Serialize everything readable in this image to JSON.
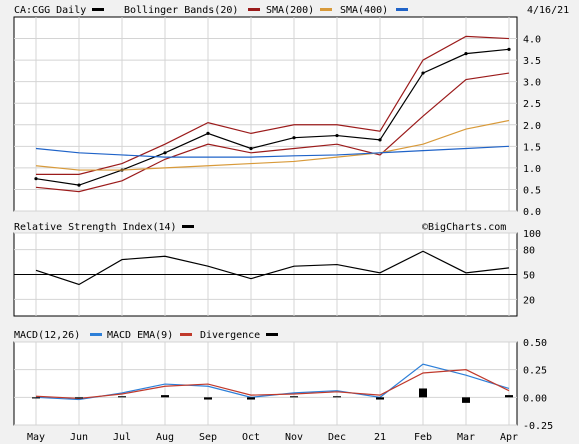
{
  "colors": {
    "background": "#f1f1f1",
    "panel_bg": "#ffffff",
    "grid": "#d4d4d4",
    "price": "#000000",
    "bollinger": "#9b1b1b",
    "sma200": "#d89a3a",
    "sma400": "#1f63c8",
    "rsi": "#000000",
    "macd": "#2d7fd8",
    "macd_ema": "#c0392b",
    "divergence": "#000000"
  },
  "header": {
    "symbol_label": "CA:CGG Daily",
    "bb_label": "Bollinger Bands(20)",
    "sma200_label": "SMA(200)",
    "sma400_label": "SMA(400)",
    "date": "4/16/21"
  },
  "rsi_header": {
    "label": "Relative Strength Index(14)",
    "watermark": "©BigCharts.com"
  },
  "macd_header": {
    "macd_label": "MACD(12,26)",
    "ema_label": "MACD EMA(9)",
    "div_label": "Divergence"
  },
  "chart_data": [
    {
      "type": "line",
      "title": "CA:CGG Daily",
      "x": [
        "May",
        "Jun",
        "Jul",
        "Aug",
        "Sep",
        "Oct",
        "Nov",
        "Dec",
        "21",
        "Feb",
        "Mar",
        "Apr"
      ],
      "ylim": [
        0.0,
        4.5
      ],
      "yticks": [
        "0.0",
        "0.5",
        "1.0",
        "1.5",
        "2.0",
        "2.5",
        "3.0",
        "3.5",
        "4.0"
      ],
      "grid": true,
      "legend": "top",
      "series": [
        {
          "name": "CA:CGG Daily",
          "values": [
            0.75,
            0.6,
            0.95,
            1.35,
            1.8,
            1.45,
            1.7,
            1.75,
            1.65,
            3.2,
            3.65,
            3.75
          ]
        },
        {
          "name": "Bollinger Bands(20) upper",
          "values": [
            0.85,
            0.85,
            1.1,
            1.55,
            2.05,
            1.8,
            2.0,
            2.0,
            1.85,
            3.5,
            4.05,
            4.0
          ]
        },
        {
          "name": "Bollinger Bands(20) lower",
          "values": [
            0.55,
            0.45,
            0.7,
            1.2,
            1.55,
            1.35,
            1.45,
            1.55,
            1.3,
            2.2,
            3.05,
            3.2
          ]
        },
        {
          "name": "SMA(200)",
          "values": [
            1.05,
            0.95,
            0.95,
            1.0,
            1.05,
            1.1,
            1.15,
            1.25,
            1.35,
            1.55,
            1.9,
            2.1
          ]
        },
        {
          "name": "SMA(400)",
          "values": [
            1.45,
            1.35,
            1.3,
            1.25,
            1.25,
            1.25,
            1.28,
            1.3,
            1.35,
            1.4,
            1.45,
            1.5
          ]
        }
      ]
    },
    {
      "type": "line",
      "title": "Relative Strength Index(14)",
      "x": [
        "May",
        "Jun",
        "Jul",
        "Aug",
        "Sep",
        "Oct",
        "Nov",
        "Dec",
        "21",
        "Feb",
        "Mar",
        "Apr"
      ],
      "ylim": [
        0,
        100
      ],
      "yticks": [
        "100",
        "80",
        "50",
        "20"
      ],
      "reference_line": 50,
      "series": [
        {
          "name": "Relative Strength Index(14)",
          "values": [
            55,
            38,
            68,
            72,
            60,
            45,
            60,
            62,
            52,
            78,
            52,
            58
          ]
        }
      ]
    },
    {
      "type": "line",
      "title": "MACD(12,26)",
      "x": [
        "May",
        "Jun",
        "Jul",
        "Aug",
        "Sep",
        "Oct",
        "Nov",
        "Dec",
        "21",
        "Feb",
        "Mar",
        "Apr"
      ],
      "ylim": [
        -0.25,
        0.5
      ],
      "yticks": [
        "0.50",
        "0.25",
        "0.00",
        "-0.25"
      ],
      "series": [
        {
          "name": "MACD(12,26)",
          "values": [
            0.0,
            -0.02,
            0.04,
            0.12,
            0.1,
            0.0,
            0.04,
            0.06,
            0.0,
            0.3,
            0.2,
            0.08
          ]
        },
        {
          "name": "MACD EMA(9)",
          "values": [
            0.01,
            -0.01,
            0.03,
            0.1,
            0.12,
            0.02,
            0.03,
            0.05,
            0.02,
            0.22,
            0.25,
            0.06
          ]
        },
        {
          "name": "Divergence",
          "values": [
            -0.01,
            -0.01,
            0.01,
            0.02,
            -0.02,
            -0.02,
            0.01,
            0.01,
            -0.02,
            0.08,
            -0.05,
            0.02
          ]
        }
      ]
    }
  ]
}
